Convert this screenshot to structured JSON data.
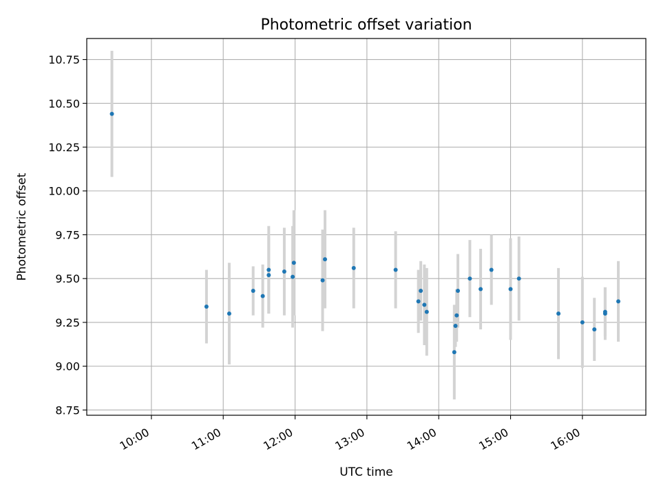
{
  "chart_data": {
    "type": "scatter",
    "title": "Photometric offset variation",
    "xlabel": "UTC time",
    "ylabel": "Photometric offset",
    "xlim": [
      "09:06",
      "16:53"
    ],
    "ylim": [
      8.72,
      10.87
    ],
    "x_ticks": [
      "10:00",
      "11:00",
      "12:00",
      "13:00",
      "14:00",
      "15:00",
      "16:00"
    ],
    "y_ticks": [
      "8.75",
      "9.00",
      "9.25",
      "9.50",
      "9.75",
      "10.00",
      "10.25",
      "10.50",
      "10.75"
    ],
    "grid": true,
    "colors": {
      "point": "#1f77b4",
      "errorbar": "#d3d3d3",
      "grid": "#b0b0b0"
    },
    "series": [
      {
        "points": [
          {
            "time": "09:27",
            "y": 10.44,
            "err": 0.36
          },
          {
            "time": "10:46",
            "y": 9.34,
            "err": 0.21
          },
          {
            "time": "11:05",
            "y": 9.3,
            "err": 0.29
          },
          {
            "time": "11:25",
            "y": 9.43,
            "err": 0.14
          },
          {
            "time": "11:33",
            "y": 9.4,
            "err": 0.18
          },
          {
            "time": "11:38",
            "y": 9.55,
            "err": 0.25
          },
          {
            "time": "11:38",
            "y": 9.52,
            "err": 0.22
          },
          {
            "time": "11:51",
            "y": 9.54,
            "err": 0.25
          },
          {
            "time": "11:58",
            "y": 9.51,
            "err": 0.29
          },
          {
            "time": "11:59",
            "y": 9.59,
            "err": 0.3
          },
          {
            "time": "12:23",
            "y": 9.49,
            "err": 0.29
          },
          {
            "time": "12:25",
            "y": 9.61,
            "err": 0.28
          },
          {
            "time": "12:49",
            "y": 9.56,
            "err": 0.23
          },
          {
            "time": "13:24",
            "y": 9.55,
            "err": 0.22
          },
          {
            "time": "13:43",
            "y": 9.37,
            "err": 0.18
          },
          {
            "time": "13:45",
            "y": 9.43,
            "err": 0.17
          },
          {
            "time": "13:48",
            "y": 9.35,
            "err": 0.23
          },
          {
            "time": "13:50",
            "y": 9.31,
            "err": 0.25
          },
          {
            "time": "14:13",
            "y": 9.08,
            "err": 0.27
          },
          {
            "time": "14:14",
            "y": 9.23,
            "err": 0.12
          },
          {
            "time": "14:15",
            "y": 9.29,
            "err": 0.15
          },
          {
            "time": "14:16",
            "y": 9.43,
            "err": 0.21
          },
          {
            "time": "14:26",
            "y": 9.5,
            "err": 0.22
          },
          {
            "time": "14:35",
            "y": 9.44,
            "err": 0.23
          },
          {
            "time": "14:44",
            "y": 9.55,
            "err": 0.2
          },
          {
            "time": "15:00",
            "y": 9.44,
            "err": 0.29
          },
          {
            "time": "15:07",
            "y": 9.5,
            "err": 0.24
          },
          {
            "time": "15:40",
            "y": 9.3,
            "err": 0.26
          },
          {
            "time": "16:00",
            "y": 9.25,
            "err": 0.26
          },
          {
            "time": "16:10",
            "y": 9.21,
            "err": 0.18
          },
          {
            "time": "16:19",
            "y": 9.3,
            "err": 0.15
          },
          {
            "time": "16:19",
            "y": 9.31,
            "err": 0.14
          },
          {
            "time": "16:30",
            "y": 9.37,
            "err": 0.23
          }
        ]
      }
    ]
  }
}
